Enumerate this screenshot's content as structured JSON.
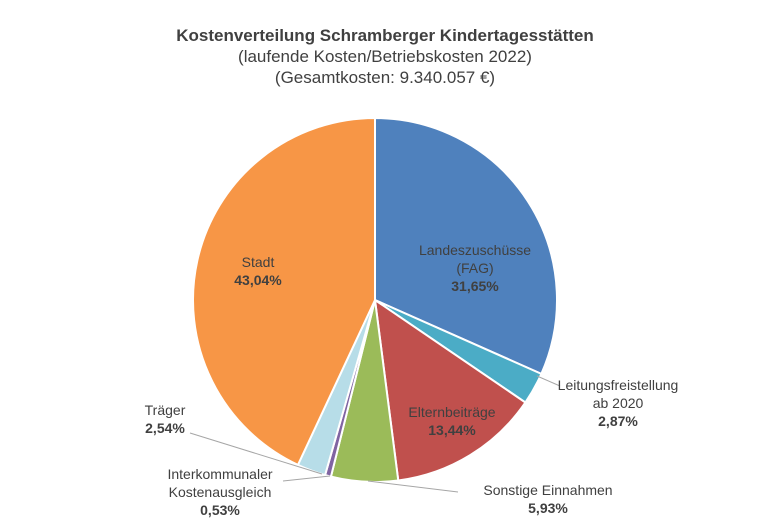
{
  "chart_data": {
    "type": "pie",
    "title": "Kostenverteilung Schramberger Kindertagesstätten",
    "subtitle_lines": [
      "(laufende Kosten/Betriebskosten 2022)",
      "(Gesamtkosten: 9.340.057 €)"
    ],
    "slices": [
      {
        "label": "Landeszuschüsse (FAG)",
        "label_lines": [
          "Landeszuschüsse",
          "(FAG)"
        ],
        "value": 31.65,
        "value_label": "31,65%",
        "color": "#4f81bd"
      },
      {
        "label": "Leitungsfreistellung ab 2020",
        "label_lines": [
          "Leitungsfreistellung",
          "ab 2020"
        ],
        "value": 2.87,
        "value_label": "2,87%",
        "color": "#4bacc6"
      },
      {
        "label": "Elternbeiträge",
        "label_lines": [
          "Elternbeiträge"
        ],
        "value": 13.44,
        "value_label": "13,44%",
        "color": "#c0504d"
      },
      {
        "label": "Sonstige Einnahmen",
        "label_lines": [
          "Sonstige Einnahmen"
        ],
        "value": 5.93,
        "value_label": "5,93%",
        "color": "#9bbb59"
      },
      {
        "label": "Interkommunaler Kostenausgleich",
        "label_lines": [
          "Interkommunaler",
          "Kostenausgleich"
        ],
        "value": 0.53,
        "value_label": "0,53%",
        "color": "#8064a2"
      },
      {
        "label": "Träger",
        "label_lines": [
          "Träger"
        ],
        "value": 2.54,
        "value_label": "2,54%",
        "color": "#b7dde8"
      },
      {
        "label": "Stadt",
        "label_lines": [
          "Stadt"
        ],
        "value": 43.04,
        "value_label": "43,04%",
        "color": "#f79646"
      }
    ]
  }
}
